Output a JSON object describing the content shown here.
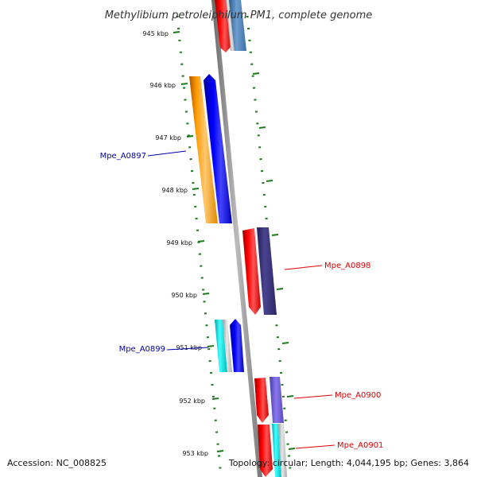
{
  "title": "Methylibium petroleiphilum PM1, complete genome",
  "accession": "Accession: NC_008825",
  "summary": "Topology: circular; Length: 4,044,195 bp; Genes: 3,864",
  "ticks": [
    "945 kbp",
    "946 kbp",
    "947 kbp",
    "948 kbp",
    "949 kbp",
    "950 kbp",
    "951 kbp",
    "952 kbp",
    "953 kbp"
  ],
  "labels": [
    {
      "id": "mpe-a0897",
      "text": "Mpe_A0897",
      "color": "#0000aa"
    },
    {
      "id": "mpe-a0898",
      "text": "Mpe_A0898",
      "color": "#dd0000"
    },
    {
      "id": "mpe-a0899",
      "text": "Mpe_A0899",
      "color": "#0000aa"
    },
    {
      "id": "mpe-a0900",
      "text": "Mpe_A0900",
      "color": "#dd0000"
    },
    {
      "id": "mpe-a0901",
      "text": "Mpe_A0901",
      "color": "#dd0000"
    }
  ],
  "colors": {
    "backbone": "#888888",
    "dots": "#1a7a1a",
    "orange": "#ff9900",
    "blue": "#0000ee",
    "red": "#ee0000",
    "navy": "#3a3477",
    "steel": "#4a7fb3",
    "cyan": "#00dddd",
    "slate": "#6655cc",
    "gray": "#bbbbbb"
  }
}
